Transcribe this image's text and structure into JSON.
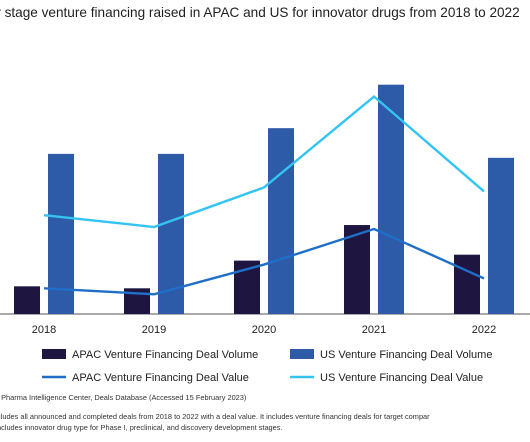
{
  "chart_data": {
    "type": "bar",
    "title": "y stage venture financing raised in APAC and US for innovator drugs from 2018 to 2022",
    "categories": [
      "2018",
      "2019",
      "2020",
      "2021",
      "2022"
    ],
    "series": [
      {
        "name": "APAC Venture Financing Deal Volume",
        "kind": "bar",
        "color": "#1e1641",
        "values": [
          14,
          13,
          27,
          45,
          30
        ]
      },
      {
        "name": "US Venture Financing Deal Volume",
        "kind": "bar",
        "color": "#2e5ba8",
        "values": [
          81,
          81,
          94,
          116,
          79
        ]
      },
      {
        "name": "APAC Venture Financing Deal Value",
        "kind": "line",
        "color": "#1f6fc8",
        "values": [
          13,
          10,
          25,
          43,
          18
        ]
      },
      {
        "name": "US Venture Financing Deal Value",
        "kind": "line",
        "color": "#33c4f2",
        "values": [
          50,
          44,
          64,
          110,
          62
        ]
      }
    ],
    "ylim": [
      0,
      130
    ],
    "grid": false,
    "legend_position": "bottom"
  },
  "source": ": Pharma Intelligence Center, Deals Database (Accessed 15 February 2023)",
  "notes": [
    "cludes all announced and completed deals from 2018 to 2022 with a deal value. It includes venture financing deals for target compar",
    "ncludes innovator drug type for Phase I, preclinical, and discovery development stages."
  ]
}
